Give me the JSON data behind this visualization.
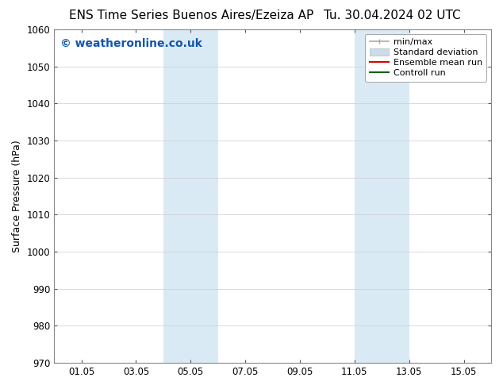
{
  "title_left": "ENS Time Series Buenos Aires/Ezeiza AP",
  "title_right": "Tu. 30.04.2024 02 UTC",
  "ylabel": "Surface Pressure (hPa)",
  "ylim": [
    970,
    1060
  ],
  "yticks": [
    970,
    980,
    990,
    1000,
    1010,
    1020,
    1030,
    1040,
    1050,
    1060
  ],
  "xtick_labels": [
    "01.05",
    "03.05",
    "05.05",
    "07.05",
    "09.05",
    "11.05",
    "13.05",
    "15.05"
  ],
  "xtick_positions": [
    1,
    3,
    5,
    7,
    9,
    11,
    13,
    15
  ],
  "xlim": [
    0,
    16
  ],
  "shaded_regions": [
    {
      "xstart": 4.0,
      "xend": 6.0,
      "color": "#daeaf5"
    },
    {
      "xstart": 11.0,
      "xend": 13.0,
      "color": "#daeaf5"
    }
  ],
  "watermark_text": "© weatheronline.co.uk",
  "watermark_color": "#1155aa",
  "background_color": "#ffffff",
  "plot_bg_color": "#ffffff",
  "legend_items": [
    {
      "label": "min/max",
      "color": "#aaaaaa",
      "lw": 1.2
    },
    {
      "label": "Standard deviation",
      "color": "#ccdde8",
      "lw": 8
    },
    {
      "label": "Ensemble mean run",
      "color": "#dd0000",
      "lw": 1.5
    },
    {
      "label": "Controll run",
      "color": "#006600",
      "lw": 1.5
    }
  ],
  "title_fontsize": 11,
  "axis_label_fontsize": 9,
  "tick_fontsize": 8.5,
  "watermark_fontsize": 10,
  "legend_fontsize": 8
}
